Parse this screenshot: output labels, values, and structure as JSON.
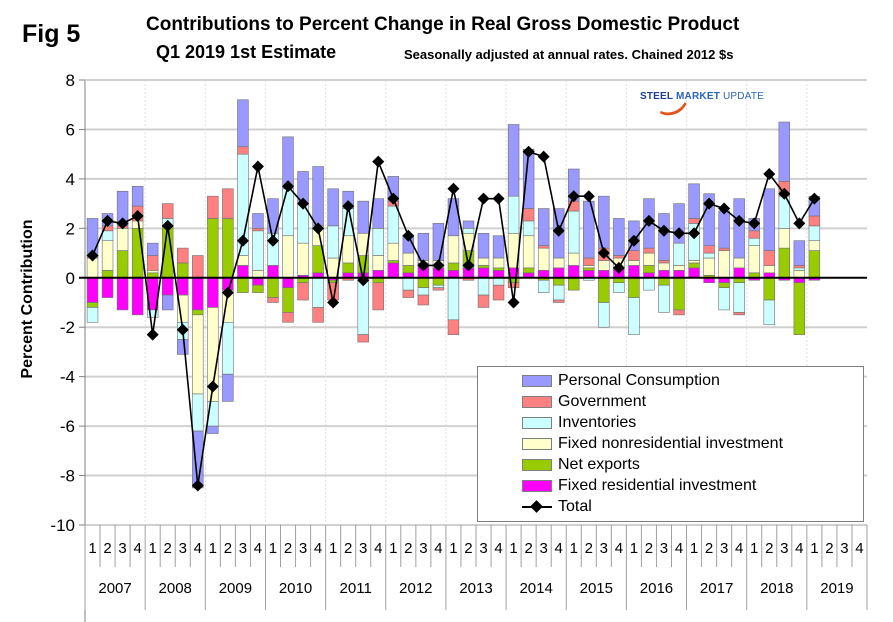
{
  "header": {
    "fig_label": "Fig 5",
    "title": "Contributions to Percent Change in Real Gross Domestic Product",
    "subtitle": "Q1 2019 1st Estimate",
    "note": "Seasonally adjusted at annual rates. Chained 2012 $s"
  },
  "logo": {
    "part1": "STEEL",
    "part2": "MARKET",
    "part3": "UPDATE"
  },
  "chart_data": {
    "type": "bar",
    "stacked": true,
    "title": "Contributions to Percent Change in Real Gross Domestic Product",
    "subtitle": "Q1 2019 1st Estimate",
    "xlabel": "",
    "ylabel": "Percent Contribution",
    "ylim": [
      -10,
      8
    ],
    "yticks": [
      8,
      6,
      4,
      2,
      0,
      -2,
      -4,
      -6,
      -8,
      -10
    ],
    "grid": true,
    "legend_position": "bottom-right",
    "years": [
      "2007",
      "2008",
      "2009",
      "2010",
      "2011",
      "2012",
      "2013",
      "2014",
      "2015",
      "2016",
      "2017",
      "2018",
      "2019"
    ],
    "quarter_labels": [
      "1",
      "2",
      "3",
      "4"
    ],
    "colors": {
      "consumption": "#9999ff",
      "government": "#ff8080",
      "inventories": "#ccffff",
      "fixed_nonres": "#ffffcc",
      "net_exports": "#99cc00",
      "fixed_res": "#ff00ff",
      "total": "#000000"
    },
    "series": [
      {
        "key": "consumption",
        "name": "Personal Consumption",
        "values": [
          1.5,
          0.5,
          1.4,
          0.8,
          0.5,
          -0.6,
          -0.6,
          -2.3,
          -0.3,
          -1.1,
          1.9,
          0.6,
          1.4,
          2.1,
          1.3,
          2.4,
          1.5,
          0.7,
          1.3,
          1.2,
          1.0,
          0.7,
          1.1,
          1.5,
          1.5,
          0.3,
          1.0,
          0.9,
          2.9,
          2.4,
          1.5,
          2.0,
          1.3,
          2.3,
          2.1,
          1.5,
          1.2,
          2.0,
          1.9,
          1.6,
          1.4,
          2.1,
          1.5,
          2.4,
          0.5,
          2.5,
          2.4,
          1.0,
          0.8
        ]
      },
      {
        "key": "government",
        "name": "Government",
        "values": [
          0.1,
          0.2,
          0.1,
          0.6,
          0.6,
          0.6,
          0.6,
          0.9,
          0.9,
          1.2,
          0.3,
          0.1,
          -0.2,
          -0.4,
          -0.7,
          -0.6,
          -0.7,
          -0.1,
          -0.3,
          -1.1,
          0.2,
          -0.3,
          -0.4,
          -0.1,
          -0.6,
          -0.1,
          -0.5,
          -0.6,
          -0.2,
          0.5,
          0.1,
          -0.1,
          0.4,
          0.3,
          0.5,
          0.1,
          0.4,
          0.2,
          0.1,
          -0.2,
          0.2,
          0.3,
          0.1,
          -0.1,
          0.3,
          0.6,
          0.6,
          0.1,
          0.4
        ]
      },
      {
        "key": "inventories",
        "name": "Inventories",
        "values": [
          -0.6,
          0.4,
          0.0,
          0.0,
          -0.3,
          0.3,
          -0.7,
          -1.5,
          -1.0,
          -2.1,
          4.1,
          1.6,
          1.3,
          1.9,
          1.6,
          -1.2,
          1.3,
          1.1,
          -2.3,
          1.1,
          1.5,
          -0.5,
          -0.3,
          -0.1,
          -1.7,
          0.2,
          -0.7,
          -0.3,
          1.5,
          0.6,
          -0.5,
          -0.6,
          1.7,
          -0.1,
          -1.0,
          -0.4,
          -1.5,
          -0.5,
          -1.1,
          0.9,
          1.5,
          0.2,
          -0.9,
          -1.2,
          0.3,
          -1.0,
          1.3,
          0.1,
          0.6
        ]
      },
      {
        "key": "fixed_nonres",
        "name": "Fixed nonresidential investment",
        "values": [
          0.8,
          1.2,
          0.9,
          0.3,
          0.1,
          0.0,
          -1.1,
          -3.2,
          -3.8,
          -1.3,
          0.4,
          0.3,
          0.0,
          1.7,
          1.3,
          0.8,
          0.8,
          1.1,
          0.9,
          0.6,
          0.7,
          0.5,
          0.1,
          0.3,
          1.1,
          0.7,
          0.3,
          0.4,
          1.4,
          1.3,
          0.9,
          0.4,
          0.5,
          0.1,
          0.4,
          0.4,
          0.2,
          0.5,
          0.3,
          0.2,
          0.1,
          0.7,
          1.1,
          0.4,
          1.1,
          0.3,
          0.8,
          0.3,
          0.4
        ]
      },
      {
        "key": "net_exports",
        "name": "Net exports",
        "values": [
          -0.2,
          0.3,
          1.1,
          2.0,
          0.2,
          2.1,
          0.6,
          -0.2,
          2.4,
          2.4,
          -0.6,
          -0.3,
          -0.8,
          -1.0,
          -0.2,
          1.1,
          -0.1,
          0.4,
          0.7,
          -0.2,
          0.1,
          0.3,
          -0.4,
          -0.3,
          0.3,
          0.7,
          0.1,
          0.1,
          -0.2,
          0.2,
          -0.1,
          -0.3,
          -0.5,
          0.1,
          -1.0,
          -0.2,
          -0.8,
          0.3,
          -0.3,
          -1.3,
          0.2,
          0.1,
          -0.2,
          -0.2,
          0.2,
          -0.9,
          1.2,
          -2.1,
          1.1
        ]
      },
      {
        "key": "fixed_res",
        "name": "Fixed residential investment",
        "values": [
          -1.0,
          -0.8,
          -1.3,
          -1.5,
          -1.3,
          -0.7,
          -0.7,
          -1.3,
          -1.2,
          -0.5,
          0.5,
          -0.3,
          0.5,
          -0.4,
          0.1,
          0.2,
          -0.1,
          0.2,
          0.2,
          0.3,
          0.6,
          0.2,
          0.6,
          0.4,
          0.3,
          0.4,
          0.4,
          0.3,
          0.4,
          0.2,
          0.3,
          0.4,
          0.5,
          0.3,
          0.3,
          0.4,
          0.5,
          0.2,
          0.3,
          0.3,
          0.4,
          -0.2,
          -0.2,
          0.4,
          -0.1,
          0.2,
          -0.1,
          -0.2,
          -0.1
        ]
      },
      {
        "key": "total",
        "name": "Total",
        "line": true,
        "values": [
          0.9,
          2.3,
          2.2,
          2.5,
          -2.3,
          2.1,
          -2.1,
          -8.4,
          -4.4,
          -0.6,
          1.5,
          4.5,
          1.5,
          3.7,
          3.0,
          2.0,
          -1.0,
          2.9,
          -0.1,
          4.7,
          3.2,
          1.7,
          0.5,
          0.5,
          3.6,
          0.5,
          3.2,
          3.2,
          -1.0,
          5.1,
          4.9,
          1.9,
          3.3,
          3.3,
          1.0,
          0.4,
          1.5,
          2.3,
          1.9,
          1.8,
          1.8,
          3.0,
          2.8,
          2.3,
          2.2,
          4.2,
          3.4,
          2.2,
          3.2
        ]
      }
    ]
  }
}
